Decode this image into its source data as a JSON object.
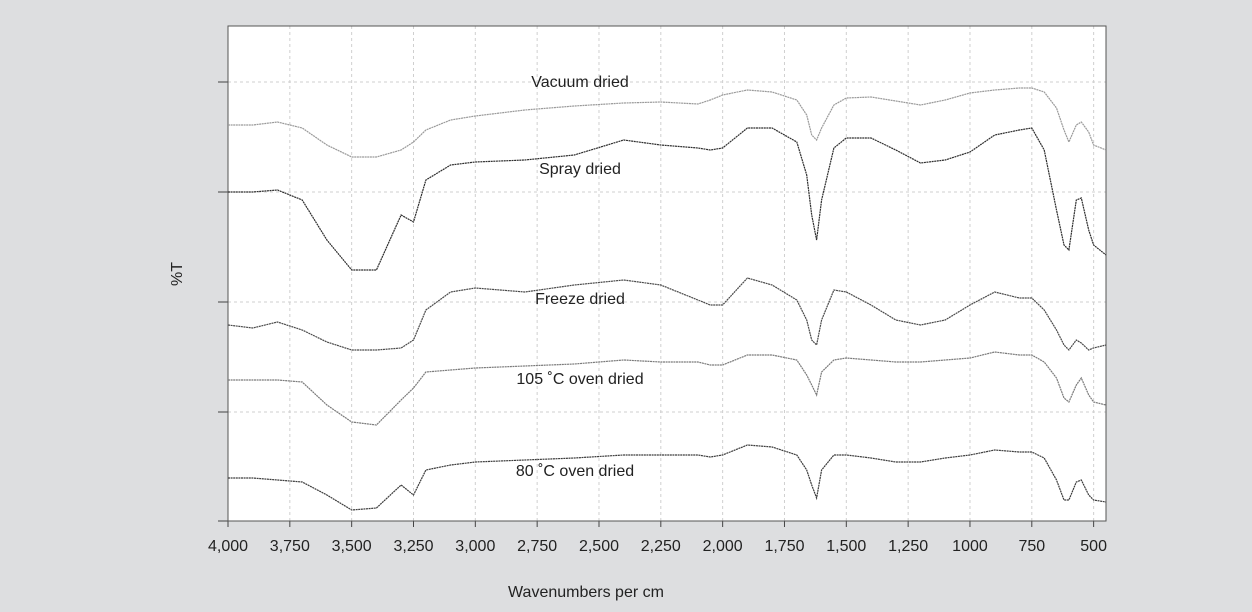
{
  "chart_data": {
    "type": "line",
    "x_label": "Wavenumbers per cm",
    "y_label": "%T",
    "x": [
      4000,
      3900,
      3800,
      3700,
      3600,
      3500,
      3400,
      3300,
      3250,
      3200,
      3100,
      3000,
      2800,
      2600,
      2400,
      2250,
      2100,
      2050,
      2000,
      1900,
      1800,
      1700,
      1660,
      1640,
      1620,
      1600,
      1550,
      1500,
      1400,
      1300,
      1200,
      1100,
      1000,
      900,
      800,
      750,
      700,
      650,
      620,
      600,
      570,
      550,
      520,
      500,
      450
    ],
    "xlim": [
      4000,
      450
    ],
    "ylim": [
      0,
      495
    ],
    "grid": true,
    "xticks": [
      {
        "value": 4000,
        "label": "4,000"
      },
      {
        "value": 3750,
        "label": "3,750"
      },
      {
        "value": 3500,
        "label": "3,500"
      },
      {
        "value": 3250,
        "label": "3,250"
      },
      {
        "value": 3000,
        "label": "3,000"
      },
      {
        "value": 2750,
        "label": "2,750"
      },
      {
        "value": 2500,
        "label": "2,500"
      },
      {
        "value": 2250,
        "label": "2,250"
      },
      {
        "value": 2000,
        "label": "2,000"
      },
      {
        "value": 1750,
        "label": "1,750"
      },
      {
        "value": 1500,
        "label": "1,500"
      },
      {
        "value": 1250,
        "label": "1,250"
      },
      1000,
      750,
      500
    ],
    "series": [
      {
        "name": "Vacuum dried",
        "color": "#9a9a9a",
        "values": [
          396,
          396,
          399,
          393,
          376,
          364,
          364,
          371,
          379,
          391,
          401,
          405,
          411,
          415,
          418,
          419,
          417,
          421,
          426,
          431,
          429,
          421,
          406,
          386,
          381,
          393,
          416,
          423,
          424,
          420,
          416,
          421,
          428,
          431,
          433,
          433,
          429,
          413,
          391,
          379,
          396,
          399,
          389,
          376,
          371
        ]
      },
      {
        "name": "Spray dried",
        "color": "#2e2e2e",
        "values": [
          329,
          329,
          331,
          321,
          281,
          251,
          251,
          306,
          299,
          341,
          356,
          359,
          361,
          366,
          381,
          376,
          373,
          371,
          373,
          393,
          393,
          379,
          346,
          306,
          281,
          321,
          373,
          383,
          383,
          371,
          358,
          361,
          369,
          386,
          391,
          393,
          371,
          311,
          276,
          271,
          321,
          323,
          291,
          276,
          266
        ]
      },
      {
        "name": "Freeze dried",
        "color": "#4a4a4a",
        "values": [
          196,
          193,
          199,
          191,
          179,
          171,
          171,
          173,
          181,
          211,
          229,
          233,
          229,
          236,
          241,
          236,
          221,
          216,
          216,
          243,
          236,
          221,
          201,
          181,
          176,
          201,
          231,
          229,
          216,
          201,
          196,
          201,
          216,
          229,
          223,
          223,
          211,
          191,
          176,
          171,
          181,
          178,
          171,
          173,
          176
        ]
      },
      {
        "name": "105 ˚C oven dried",
        "color": "#7a7a7a",
        "values": [
          141,
          141,
          141,
          139,
          116,
          99,
          96,
          121,
          133,
          149,
          151,
          153,
          155,
          157,
          161,
          159,
          159,
          156,
          156,
          166,
          166,
          161,
          146,
          136,
          126,
          149,
          161,
          163,
          161,
          159,
          159,
          161,
          163,
          169,
          166,
          166,
          159,
          143,
          123,
          119,
          136,
          143,
          126,
          119,
          116
        ]
      },
      {
        "name": "80 ˚C oven dried",
        "color": "#3c3c3c",
        "values": [
          43,
          43,
          41,
          39,
          26,
          11,
          13,
          36,
          26,
          51,
          56,
          59,
          61,
          63,
          66,
          66,
          66,
          64,
          66,
          76,
          74,
          66,
          51,
          36,
          23,
          51,
          66,
          66,
          63,
          59,
          59,
          63,
          66,
          71,
          69,
          69,
          63,
          41,
          21,
          21,
          39,
          41,
          26,
          21,
          19
        ]
      }
    ]
  }
}
